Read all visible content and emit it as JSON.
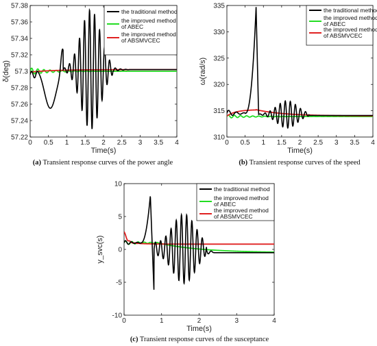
{
  "chart_data": [
    {
      "type": "line",
      "caption_label": "(a)",
      "caption_text": "Transient response curves of the power angle",
      "xlabel": "Time(s)",
      "ylabel": "δ(deg)",
      "xlim": [
        0,
        4
      ],
      "ylim": [
        57.22,
        57.38
      ],
      "xticks": [
        "0",
        "0.5",
        "1",
        "1.5",
        "2",
        "2.5",
        "3",
        "3.5",
        "4"
      ],
      "yticks": [
        "57.22",
        "57.24",
        "57.26",
        "57.28",
        "57.3",
        "57.32",
        "57.34",
        "57.36",
        "57.38"
      ],
      "legend_position": "top-right",
      "series": [
        {
          "name": "the traditional method",
          "color": "#000000"
        },
        {
          "name": "the improved method of ABEC",
          "color": "#22dd22"
        },
        {
          "name": "the improved method of ABSMVCEC",
          "color": "#e02020"
        }
      ]
    },
    {
      "type": "line",
      "caption_label": "(b)",
      "caption_text": "Transient response curves of the speed",
      "xlabel": "Time(s)",
      "ylabel": "ω(rad/s)",
      "xlim": [
        0,
        4
      ],
      "ylim": [
        310,
        335
      ],
      "xticks": [
        "0",
        "0.5",
        "1",
        "1.5",
        "2",
        "2.5",
        "3",
        "3.5",
        "4"
      ],
      "yticks": [
        "310",
        "315",
        "320",
        "325",
        "330",
        "335"
      ],
      "legend_position": "top-right",
      "series": [
        {
          "name": "the traditional method",
          "color": "#000000"
        },
        {
          "name": "the improved method of ABEC",
          "color": "#22dd22"
        },
        {
          "name": "the improved method of ABSMVCEC",
          "color": "#e02020"
        }
      ]
    },
    {
      "type": "line",
      "caption_label": "(c)",
      "caption_text": "Transient response curves of the susceptance",
      "xlabel": "Time(s)",
      "ylabel": "y_svc(s)",
      "xlim": [
        0,
        4
      ],
      "ylim": [
        -10,
        10
      ],
      "xticks": [
        "0",
        "1",
        "2",
        "3",
        "4"
      ],
      "yticks": [
        "-10",
        "-5",
        "0",
        "5",
        "10"
      ],
      "legend_position": "top-right",
      "series": [
        {
          "name": "the traditional method",
          "color": "#000000"
        },
        {
          "name": "the improved method of ABEC",
          "color": "#22dd22"
        },
        {
          "name": "the improved method of ABSMVCEC",
          "color": "#e02020"
        }
      ]
    }
  ]
}
